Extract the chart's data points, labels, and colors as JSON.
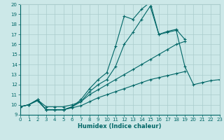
{
  "xlabel": "Humidex (Indice chaleur)",
  "xlim": [
    0,
    23
  ],
  "ylim": [
    9,
    20
  ],
  "xtick_vals": [
    0,
    1,
    2,
    3,
    4,
    5,
    6,
    7,
    8,
    9,
    10,
    11,
    12,
    13,
    14,
    15,
    16,
    17,
    18,
    19,
    20,
    21,
    22,
    23
  ],
  "ytick_vals": [
    9,
    10,
    11,
    12,
    13,
    14,
    15,
    16,
    17,
    18,
    19,
    20
  ],
  "background_color": "#cce8e8",
  "grid_color": "#aacccc",
  "line_color": "#006666",
  "lines": [
    {
      "x": [
        0,
        1,
        2,
        3,
        4,
        5,
        6,
        7,
        8,
        9,
        10,
        11,
        12,
        13,
        14,
        15,
        16,
        17,
        18,
        19
      ],
      "y": [
        9.8,
        10.0,
        10.5,
        9.5,
        9.5,
        9.5,
        9.8,
        10.5,
        11.6,
        12.5,
        13.2,
        15.8,
        18.8,
        18.5,
        19.5,
        20.2,
        17.0,
        17.3,
        17.5,
        16.5
      ]
    },
    {
      "x": [
        0,
        1,
        2,
        3,
        4,
        5,
        6,
        7,
        8,
        9,
        10,
        11,
        12,
        13,
        14,
        15,
        16,
        17,
        18,
        19,
        20,
        21,
        22,
        23
      ],
      "y": [
        9.8,
        10.0,
        10.5,
        9.5,
        9.5,
        9.5,
        9.8,
        10.3,
        11.3,
        12.0,
        12.5,
        13.8,
        16.0,
        17.2,
        18.5,
        19.8,
        17.0,
        17.2,
        17.4,
        13.8,
        12.0,
        12.2,
        12.4,
        12.5
      ]
    },
    {
      "x": [
        0,
        1,
        2,
        3,
        4,
        5,
        6,
        7,
        8,
        9,
        10,
        11,
        12,
        13,
        14,
        15,
        16,
        17,
        18,
        19,
        20,
        21,
        22,
        23
      ],
      "y": [
        9.8,
        10.0,
        10.5,
        9.8,
        9.8,
        9.8,
        10.0,
        10.3,
        11.0,
        11.5,
        12.0,
        12.5,
        13.0,
        13.5,
        14.0,
        14.5,
        15.0,
        15.5,
        16.0,
        16.3,
        null,
        null,
        null,
        null
      ]
    },
    {
      "x": [
        0,
        1,
        2,
        3,
        4,
        5,
        6,
        7,
        8,
        9,
        10,
        11,
        12,
        13,
        14,
        15,
        16,
        17,
        18,
        19,
        20,
        21,
        22,
        23
      ],
      "y": [
        9.8,
        10.0,
        10.4,
        9.5,
        9.5,
        9.5,
        9.7,
        9.9,
        10.3,
        10.7,
        11.0,
        11.3,
        11.6,
        11.9,
        12.2,
        12.5,
        12.7,
        12.9,
        13.1,
        13.3,
        null,
        null,
        null,
        null
      ]
    }
  ]
}
